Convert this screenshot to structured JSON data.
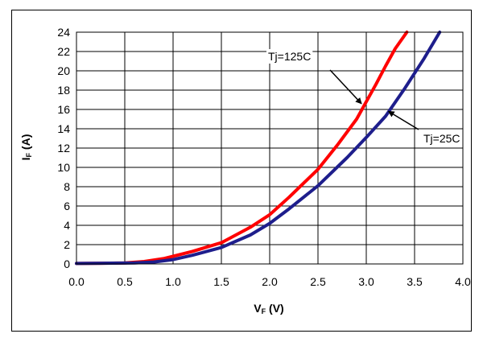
{
  "chart_data": {
    "type": "line",
    "xlabel_main": "V",
    "xlabel_sub": "F",
    "xlabel_unit": " (V)",
    "ylabel_main": "I",
    "ylabel_sub": "F",
    "ylabel_unit": " (A)",
    "xlim": [
      0.0,
      4.0
    ],
    "ylim": [
      0,
      24
    ],
    "xticks": [
      "0.0",
      "0.5",
      "1.0",
      "1.5",
      "2.0",
      "2.5",
      "3.0",
      "3.5",
      "4.0"
    ],
    "yticks": [
      "0",
      "2",
      "4",
      "6",
      "8",
      "10",
      "12",
      "14",
      "16",
      "18",
      "20",
      "22",
      "24"
    ],
    "grid": true,
    "series": [
      {
        "name": "Tj=125C",
        "color": "#ff0000",
        "x": [
          0.0,
          0.5,
          0.7,
          0.9,
          1.0,
          1.2,
          1.5,
          1.8,
          2.0,
          2.2,
          2.5,
          2.7,
          2.9,
          3.0,
          3.1,
          3.2,
          3.3,
          3.42
        ],
        "y": [
          0.05,
          0.1,
          0.25,
          0.55,
          0.8,
          1.3,
          2.2,
          3.8,
          5.1,
          6.9,
          9.8,
          12.3,
          15.0,
          16.8,
          18.6,
          20.5,
          22.3,
          24.0
        ]
      },
      {
        "name": "Tj=25C",
        "color": "#1e1e8c",
        "x": [
          0.0,
          0.6,
          0.8,
          1.0,
          1.2,
          1.5,
          1.8,
          2.0,
          2.2,
          2.5,
          2.8,
          3.0,
          3.2,
          3.4,
          3.6,
          3.76
        ],
        "y": [
          0.05,
          0.1,
          0.2,
          0.45,
          0.9,
          1.7,
          3.0,
          4.2,
          5.7,
          8.1,
          11.0,
          13.1,
          15.3,
          18.2,
          21.3,
          24.0
        ]
      }
    ],
    "annotations": [
      {
        "text": "Tj=125C",
        "series": "Tj=125C",
        "arrow_to": [
          2.95,
          16.6
        ]
      },
      {
        "text": "Tj=25C",
        "series": "Tj=25C",
        "arrow_to": [
          3.23,
          15.8
        ]
      }
    ]
  }
}
